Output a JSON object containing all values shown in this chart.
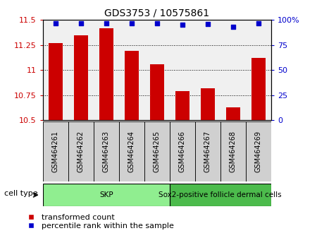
{
  "title": "GDS3753 / 10575861",
  "samples": [
    "GSM464261",
    "GSM464262",
    "GSM464263",
    "GSM464264",
    "GSM464265",
    "GSM464266",
    "GSM464267",
    "GSM464268",
    "GSM464269"
  ],
  "transformed_counts": [
    11.27,
    11.35,
    11.42,
    11.19,
    11.06,
    10.79,
    10.82,
    10.63,
    11.12
  ],
  "percentile_ranks": [
    97,
    97,
    97,
    97,
    97,
    95,
    96,
    93,
    97
  ],
  "ylim_left": [
    10.5,
    11.5
  ],
  "ylim_right": [
    0,
    100
  ],
  "yticks_left": [
    10.5,
    10.75,
    11.0,
    11.25,
    11.5
  ],
  "yticks_right": [
    0,
    25,
    50,
    75,
    100
  ],
  "ytick_labels_left": [
    "10.5",
    "10.75",
    "11",
    "11.25",
    "11.5"
  ],
  "ytick_labels_right": [
    "0",
    "25",
    "50",
    "75",
    "100%"
  ],
  "bar_color": "#cc0000",
  "dot_color": "#0000cc",
  "sample_box_color": "#d0d0d0",
  "cell_types": [
    {
      "label": "SKP",
      "start": 0,
      "end": 4,
      "color": "#90ee90"
    },
    {
      "label": "Sox2-positive follicle dermal cells",
      "start": 5,
      "end": 8,
      "color": "#4cbb4c"
    }
  ],
  "cell_type_label": "cell type",
  "legend_items": [
    {
      "label": "transformed count",
      "color": "#cc0000"
    },
    {
      "label": "percentile rank within the sample",
      "color": "#0000cc"
    }
  ],
  "grid_linestyle": ":",
  "grid_linewidth": 0.7,
  "plot_bg": "#f0f0f0",
  "title_fontsize": 10,
  "tick_fontsize": 8,
  "sample_fontsize": 7,
  "legend_fontsize": 8
}
